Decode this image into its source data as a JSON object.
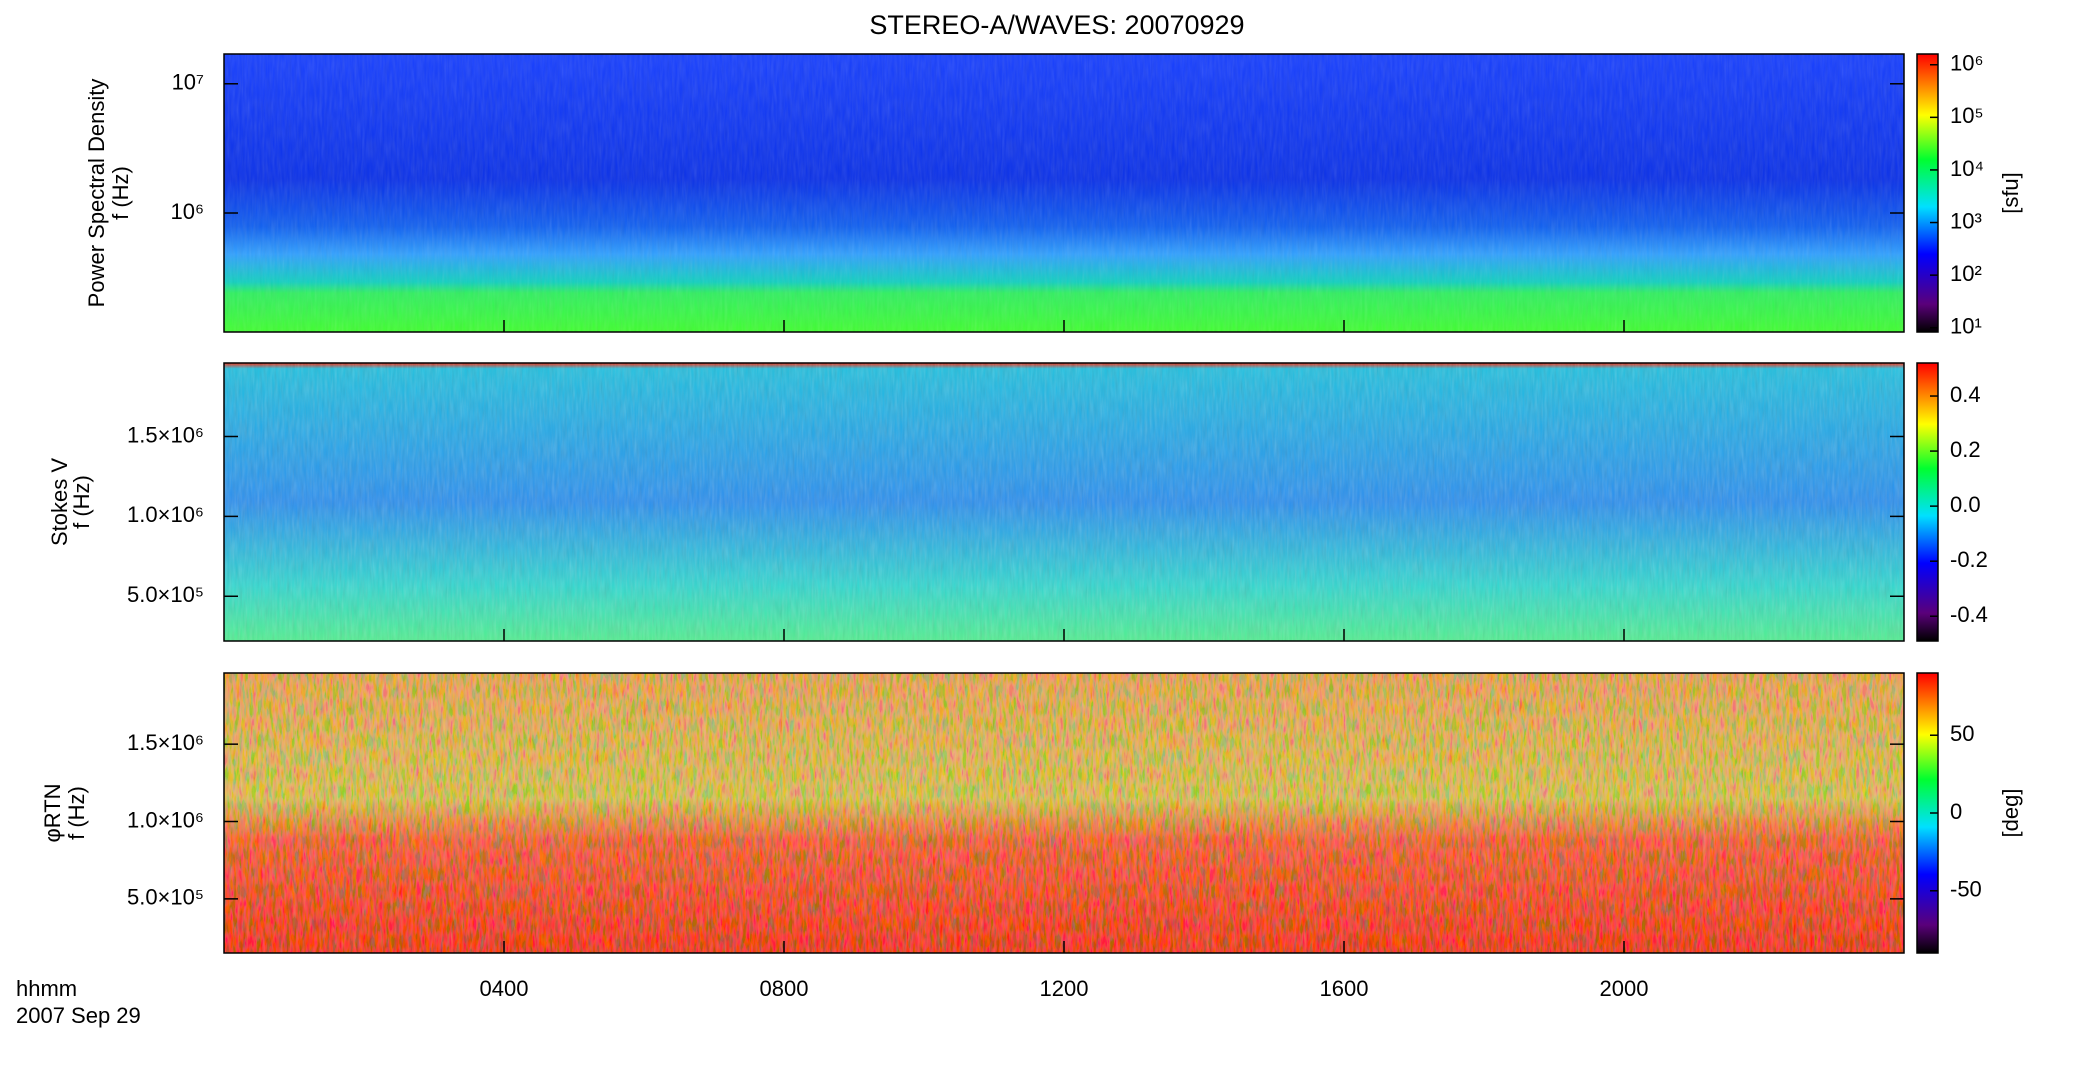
{
  "title": "STEREO-A/WAVES: 20070929",
  "xaxis": {
    "xlim": [
      0,
      24
    ],
    "xticks": [
      {
        "value": 4,
        "label": "0400"
      },
      {
        "value": 8,
        "label": "0800"
      },
      {
        "value": 12,
        "label": "1200"
      },
      {
        "value": 16,
        "label": "1600"
      },
      {
        "value": 20,
        "label": "2000"
      }
    ],
    "labels": [
      "hhmm",
      "2007 Sep 29"
    ]
  },
  "chart_data": [
    {
      "type": "spectrogram",
      "ylabel": [
        "Power Spectral Density",
        "f (Hz)"
      ],
      "log_y": true,
      "ylim": [
        120000,
        17000000
      ],
      "yticks": [
        {
          "value": 1000000,
          "label": "10⁶"
        },
        {
          "value": 10000000,
          "label": "10⁷"
        }
      ],
      "colorbar": {
        "log": true,
        "lim": [
          8.3,
          1600000
        ],
        "label": "[sfu]",
        "ticks": [
          {
            "value": 10,
            "label": "10¹"
          },
          {
            "value": 100,
            "label": "10²"
          },
          {
            "value": 1000,
            "label": "10³"
          },
          {
            "value": 10000,
            "label": "10⁴"
          },
          {
            "value": 100000,
            "label": "10⁵"
          },
          {
            "value": 1000000,
            "label": "10⁶"
          }
        ]
      }
    },
    {
      "type": "spectrogram",
      "ylabel": [
        "Stokes V",
        "f (Hz)"
      ],
      "log_y": false,
      "ylim": [
        220000,
        1960000
      ],
      "yticks": [
        {
          "value": 500000,
          "label": "5.0×10⁵"
        },
        {
          "value": 1000000,
          "label": "1.0×10⁶"
        },
        {
          "value": 1500000,
          "label": "1.5×10⁶"
        }
      ],
      "colorbar": {
        "log": false,
        "lim": [
          -0.49,
          0.52
        ],
        "ticks": [
          -0.4,
          -0.2,
          {
            "value": 0,
            "label": "0.0"
          },
          0.2,
          0.4
        ]
      }
    },
    {
      "type": "spectrogram",
      "ylabel": [
        "φRTN",
        "f (Hz)"
      ],
      "log_y": false,
      "ylim": [
        150000,
        1960000
      ],
      "yticks": [
        {
          "value": 500000,
          "label": "5.0×10⁵"
        },
        {
          "value": 1000000,
          "label": "1.0×10⁶"
        },
        {
          "value": 1500000,
          "label": "1.5×10⁶"
        }
      ],
      "colorbar": {
        "log": false,
        "lim": [
          -90,
          90
        ],
        "label": "[deg]",
        "ticks": [
          -50,
          0,
          50
        ]
      }
    }
  ]
}
